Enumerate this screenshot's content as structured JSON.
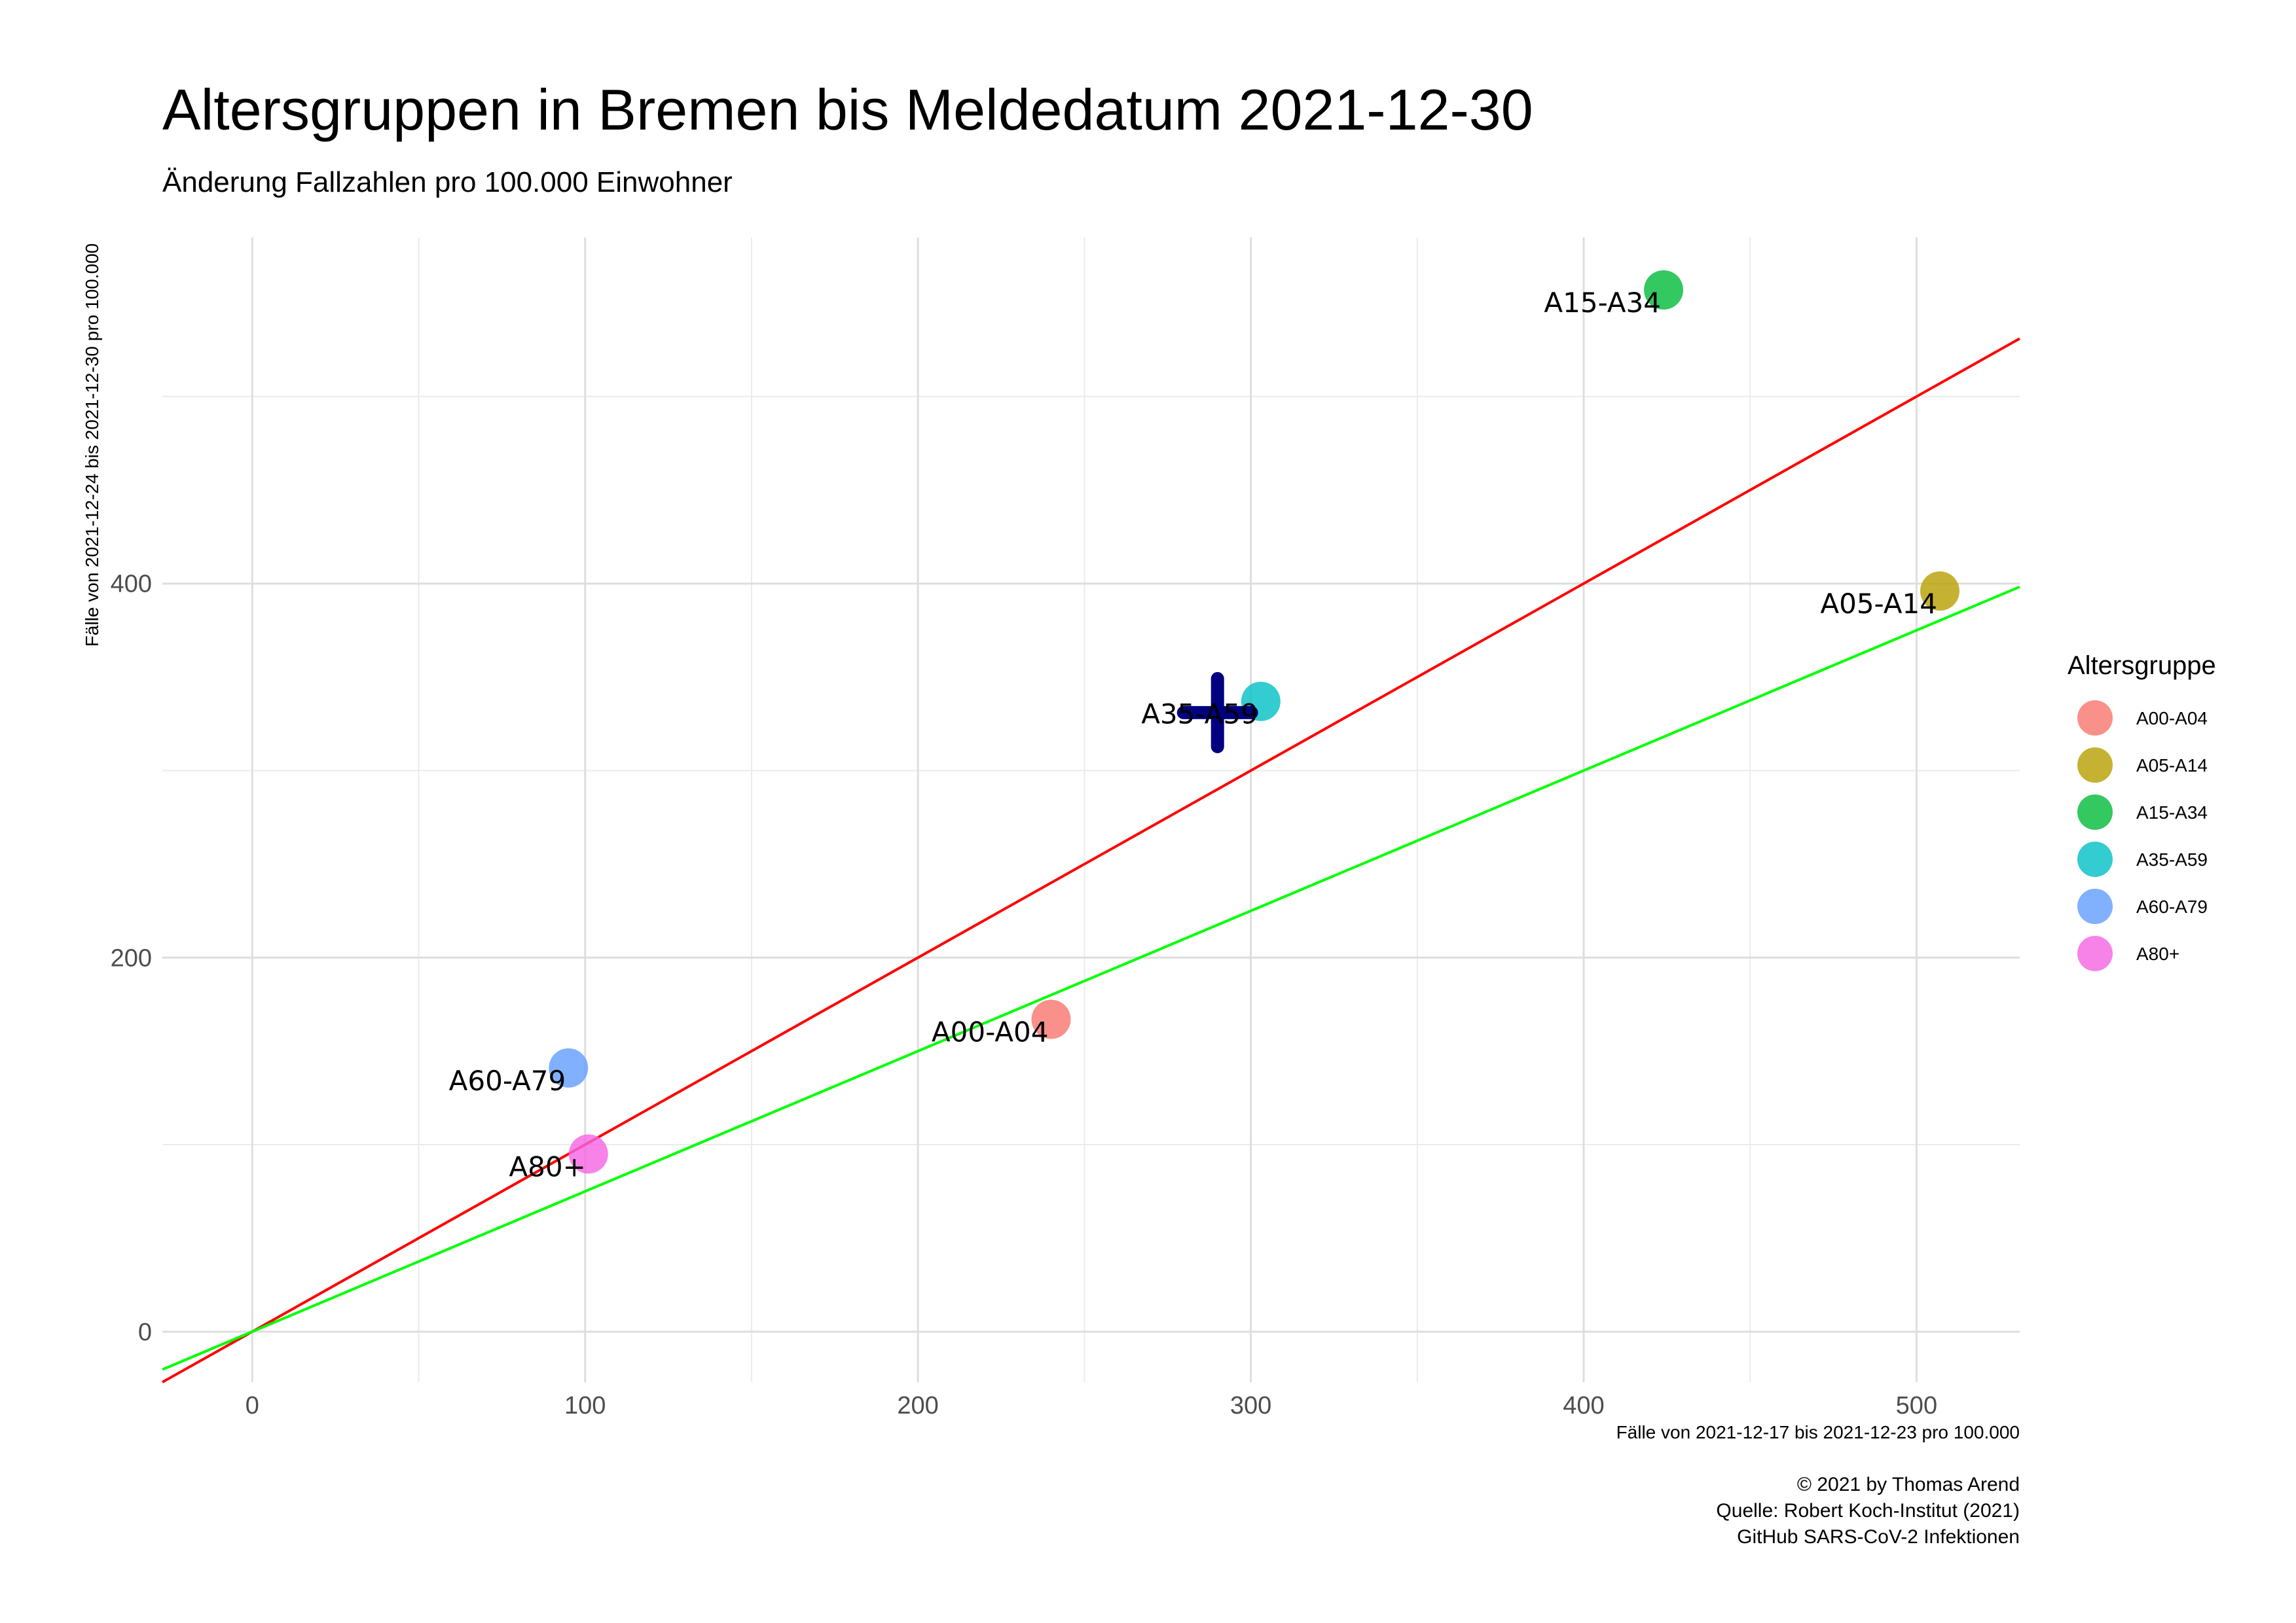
{
  "chart_data": {
    "type": "scatter",
    "title": "Altersgruppen in Bremen bis Meldedatum 2021-12-30",
    "subtitle": "Änderung Fallzahlen pro 100.000 Einwohner",
    "xlabel": "Fälle von 2021-12-17 bis 2021-12-23 pro 100.000",
    "ylabel": "Fälle von 2021-12-24 bis 2021-12-30 pro 100.000",
    "xlim": [
      -27,
      531
    ],
    "ylim": [
      -27,
      585
    ],
    "x_ticks": [
      0,
      100,
      200,
      300,
      400,
      500
    ],
    "y_ticks": [
      0,
      200,
      400
    ],
    "x_minor_grid": [
      50,
      150,
      250,
      350,
      450
    ],
    "y_minor_grid": [
      100,
      300,
      500
    ],
    "grid": true,
    "legend_title": "Altersgruppe",
    "legend_position": "right",
    "series": [
      {
        "name": "A00-A04",
        "x": 240,
        "y": 167,
        "color": "#F8766D"
      },
      {
        "name": "A05-A14",
        "x": 507,
        "y": 396,
        "color": "#B79F00"
      },
      {
        "name": "A15-A34",
        "x": 424,
        "y": 557,
        "color": "#00BA38"
      },
      {
        "name": "A35-A59",
        "x": 303,
        "y": 337,
        "color": "#00BFC4"
      },
      {
        "name": "A60-A79",
        "x": 95,
        "y": 141,
        "color": "#619CFF"
      },
      {
        "name": "A80+",
        "x": 101,
        "y": 95,
        "color": "#F564E3"
      }
    ],
    "reference_lines": [
      {
        "slope": 1,
        "intercept": 0,
        "color": "#FF0000"
      },
      {
        "slope": 0.75,
        "intercept": 0,
        "color": "#00FF00"
      }
    ],
    "mean_marker": {
      "x": 290,
      "y": 331,
      "color": "#000080",
      "shape": "cross"
    }
  },
  "caption": {
    "line1": "© 2021 by Thomas Arend",
    "line2": "Quelle: Robert Koch-Institut (2021)",
    "line3": "GitHub SARS-CoV-2 Infektionen"
  }
}
